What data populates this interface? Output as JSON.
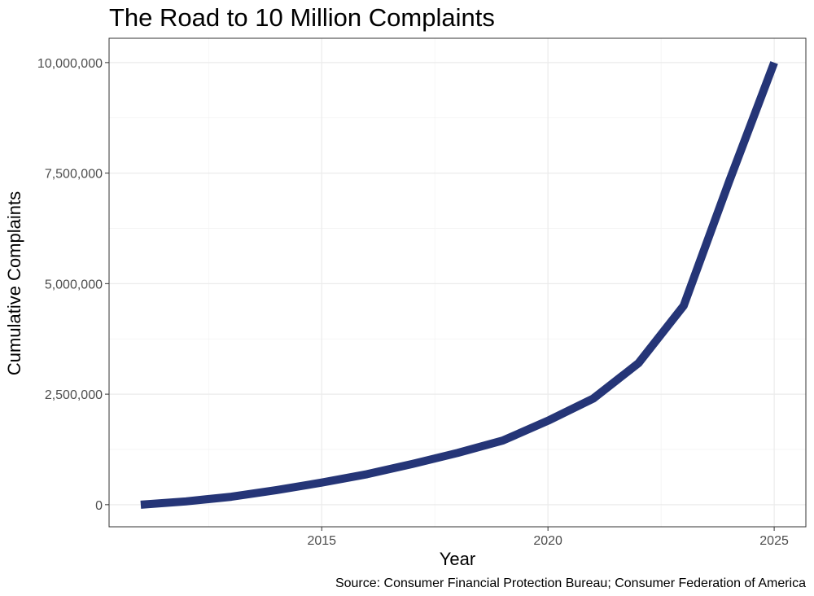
{
  "chart_data": {
    "type": "line",
    "title": "The Road to 10 Million Complaints",
    "xlabel": "Year",
    "ylabel": "Cumulative Complaints",
    "caption": "Source: Consumer Financial Protection Bureau; Consumer Federation of America",
    "xlim": [
      2010.3,
      2025.7
    ],
    "ylim": [
      -500000,
      10550000
    ],
    "x_ticks": [
      2015,
      2020,
      2025
    ],
    "x_tick_labels": [
      "2015",
      "2020",
      "2025"
    ],
    "x_minor_ticks": [
      2012.5,
      2017.5,
      2022.5
    ],
    "y_ticks": [
      0,
      2500000,
      5000000,
      7500000,
      10000000
    ],
    "y_tick_labels": [
      "0",
      "2,500,000",
      "5,000,000",
      "7,500,000",
      "10,000,000"
    ],
    "y_minor_ticks": [
      1250000,
      3750000,
      6250000,
      8750000
    ],
    "grid": true,
    "legend": "none",
    "series": [
      {
        "color": "#253577",
        "x": [
          2011,
          2012,
          2013,
          2014,
          2015,
          2016,
          2017,
          2018,
          2019,
          2020,
          2021,
          2022,
          2023,
          2024,
          2025
        ],
        "y": [
          0,
          75000,
          180000,
          330000,
          500000,
          690000,
          920000,
          1170000,
          1450000,
          1900000,
          2400000,
          3200000,
          4500000,
          7300000,
          10000000
        ]
      }
    ]
  }
}
